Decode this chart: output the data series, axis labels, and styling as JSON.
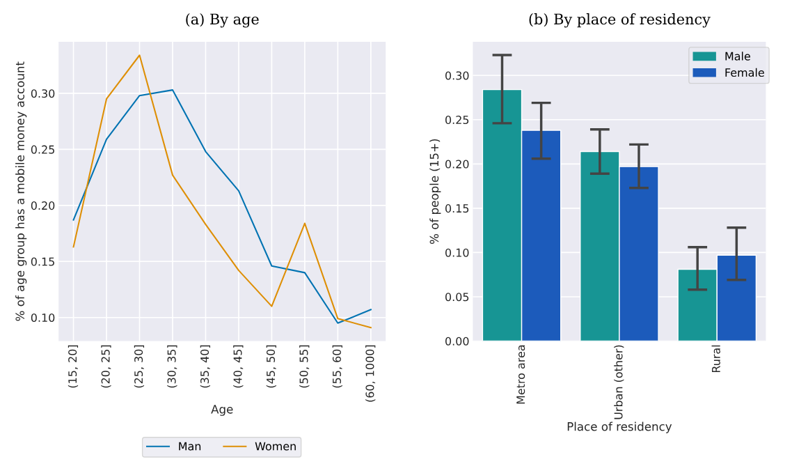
{
  "chart_data": [
    {
      "type": "line",
      "title": "(a) By age",
      "xlabel": "Age",
      "ylabel": "% of age group has a mobile money account",
      "categories": [
        "(15, 20]",
        "(20, 25]",
        "(25, 30]",
        "(30, 35]",
        "(35, 40]",
        "(40, 45]",
        "(45, 50]",
        "(50, 55]",
        "(55, 60]",
        "(60, 1000]"
      ],
      "series": [
        {
          "name": "Man",
          "color": "#0173b2",
          "values": [
            0.187,
            0.259,
            0.298,
            0.303,
            0.248,
            0.213,
            0.146,
            0.14,
            0.095,
            0.107
          ]
        },
        {
          "name": "Women",
          "color": "#de8f05",
          "values": [
            0.163,
            0.295,
            0.334,
            0.227,
            0.183,
            0.142,
            0.11,
            0.184,
            0.099,
            0.091
          ]
        }
      ],
      "ylim": [
        0.079,
        0.346
      ],
      "yticks": [
        {
          "value": 0.1,
          "label": "0.10"
        },
        {
          "value": 0.15,
          "label": "0.15"
        },
        {
          "value": 0.2,
          "label": "0.20"
        },
        {
          "value": 0.25,
          "label": "0.25"
        },
        {
          "value": 0.3,
          "label": "0.30"
        }
      ],
      "grid": true,
      "legend": "bottom"
    },
    {
      "type": "bar",
      "title": "(b) By place of residency",
      "xlabel": "Place of residency",
      "ylabel": "% of people (15+)",
      "categories": [
        "Metro area",
        "Urban (other)",
        "Rural"
      ],
      "series": [
        {
          "name": "Male",
          "color": "#179594",
          "values": [
            0.284,
            0.214,
            0.081
          ],
          "errors": [
            [
              0.246,
              0.323
            ],
            [
              0.189,
              0.239
            ],
            [
              0.058,
              0.106
            ]
          ]
        },
        {
          "name": "Female",
          "color": "#1c5bbb",
          "values": [
            0.238,
            0.197,
            0.097
          ],
          "errors": [
            [
              0.206,
              0.269
            ],
            [
              0.173,
              0.222
            ],
            [
              0.069,
              0.128
            ]
          ]
        }
      ],
      "ylim": [
        0,
        0.338
      ],
      "yticks": [
        {
          "value": 0.0,
          "label": "0.00"
        },
        {
          "value": 0.05,
          "label": "0.05"
        },
        {
          "value": 0.1,
          "label": "0.10"
        },
        {
          "value": 0.15,
          "label": "0.15"
        },
        {
          "value": 0.2,
          "label": "0.20"
        },
        {
          "value": 0.25,
          "label": "0.25"
        },
        {
          "value": 0.3,
          "label": "0.30"
        }
      ],
      "grid": "y",
      "legend": "top right"
    }
  ]
}
